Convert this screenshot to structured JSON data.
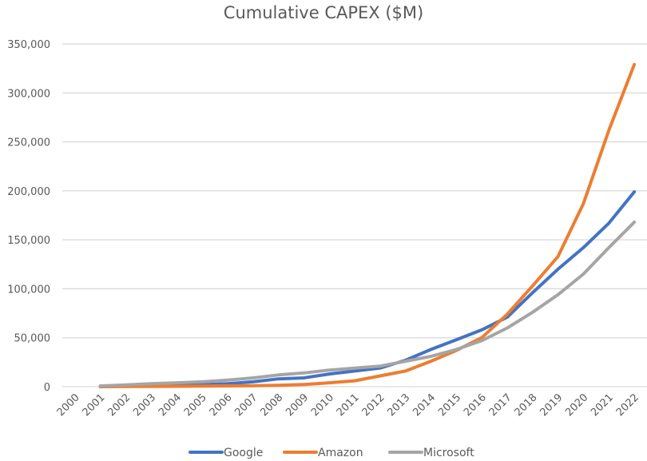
{
  "chart_data": {
    "type": "line",
    "title": "Cumulative CAPEX ($M)",
    "xlabel": "",
    "ylabel": "",
    "ylim": [
      0,
      350000
    ],
    "yticks": [
      0,
      50000,
      100000,
      150000,
      200000,
      250000,
      300000,
      350000
    ],
    "ytick_labels": [
      "0",
      "50,000",
      "100,000",
      "150,000",
      "200,000",
      "250,000",
      "300,000",
      "350,000"
    ],
    "grid": true,
    "legend_position": "bottom",
    "categories": [
      "2000",
      "2001",
      "2002",
      "2003",
      "2004",
      "2005",
      "2006",
      "2007",
      "2008",
      "2009",
      "2010",
      "2011",
      "2012",
      "2013",
      "2014",
      "2015",
      "2016",
      "2017",
      "2018",
      "2019",
      "2020",
      "2021",
      "2022"
    ],
    "series": [
      {
        "name": "Google",
        "color": "#4472C4",
        "values": [
          null,
          100,
          600,
          1000,
          1300,
          2000,
          3000,
          5000,
          8000,
          9000,
          13000,
          16000,
          19000,
          27000,
          38000,
          48000,
          58000,
          71000,
          96000,
          120000,
          142000,
          167000,
          199000
        ]
      },
      {
        "name": "Amazon",
        "color": "#ED7D31",
        "values": [
          null,
          100,
          200,
          300,
          400,
          600,
          800,
          1000,
          1500,
          2200,
          4000,
          6000,
          11000,
          16000,
          26000,
          37000,
          50000,
          74000,
          103000,
          133000,
          187000,
          262000,
          329000
        ]
      },
      {
        "name": "Microsoft",
        "color": "#A5A5A5",
        "values": [
          null,
          800,
          1800,
          3000,
          4000,
          5000,
          6800,
          9000,
          12000,
          14000,
          17000,
          19000,
          21000,
          26000,
          31000,
          38000,
          47000,
          60000,
          76000,
          94000,
          115000,
          142000,
          168000
        ]
      }
    ]
  }
}
